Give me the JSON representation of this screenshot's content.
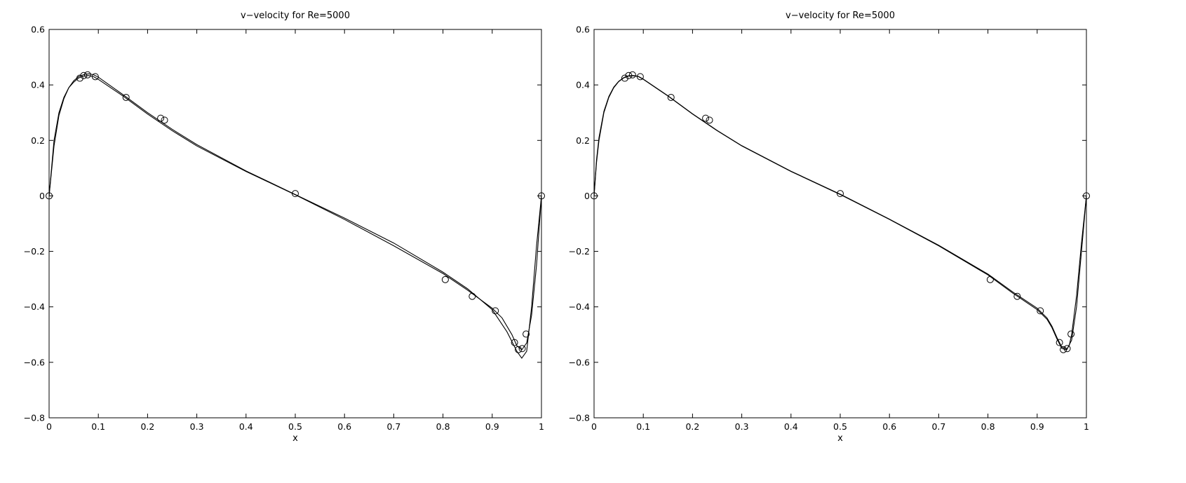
{
  "chart_data": [
    {
      "type": "line",
      "title": "v−velocity for Re=5000",
      "xlabel": "x",
      "ylabel": "",
      "xlim": [
        0,
        1
      ],
      "ylim": [
        -0.8,
        0.6
      ],
      "grid": false,
      "xticks": [
        0,
        0.1,
        0.2,
        0.3,
        0.4,
        0.5,
        0.6,
        0.7,
        0.8,
        0.9,
        1
      ],
      "xtick_labels": [
        "0",
        "0.1",
        "0.2",
        "0.3",
        "0.4",
        "0.5",
        "0.6",
        "0.7",
        "0.8",
        "0.9",
        "1"
      ],
      "yticks": [
        -0.8,
        -0.6,
        -0.4,
        -0.2,
        0,
        0.2,
        0.4,
        0.6
      ],
      "ytick_labels": [
        "−0.8",
        "−0.6",
        "−0.4",
        "−0.2",
        "0",
        "0.2",
        "0.4",
        "0.6"
      ],
      "series": [
        {
          "style": "line",
          "x": [
            0,
            0.01,
            0.02,
            0.03,
            0.04,
            0.05,
            0.06,
            0.07,
            0.08,
            0.09,
            0.1,
            0.15,
            0.2,
            0.25,
            0.3,
            0.4,
            0.5,
            0.6,
            0.7,
            0.8,
            0.85,
            0.9,
            0.93,
            0.95,
            0.96,
            0.97,
            0.98,
            0.99,
            1
          ],
          "y": [
            0,
            0.18,
            0.29,
            0.35,
            0.39,
            0.415,
            0.43,
            0.437,
            0.44,
            0.437,
            0.428,
            0.365,
            0.3,
            0.24,
            0.185,
            0.09,
            0.005,
            -0.08,
            -0.17,
            -0.275,
            -0.335,
            -0.41,
            -0.49,
            -0.56,
            -0.585,
            -0.56,
            -0.4,
            -0.18,
            0
          ]
        },
        {
          "style": "line",
          "x": [
            0,
            0.01,
            0.02,
            0.03,
            0.04,
            0.05,
            0.06,
            0.07,
            0.08,
            0.09,
            0.1,
            0.15,
            0.2,
            0.25,
            0.3,
            0.4,
            0.5,
            0.6,
            0.7,
            0.8,
            0.85,
            0.9,
            0.92,
            0.94,
            0.95,
            0.96,
            0.97,
            0.98,
            0.99,
            1
          ],
          "y": [
            0,
            0.2,
            0.3,
            0.355,
            0.39,
            0.41,
            0.425,
            0.432,
            0.434,
            0.43,
            0.42,
            0.36,
            0.295,
            0.235,
            0.18,
            0.088,
            0.004,
            -0.085,
            -0.18,
            -0.28,
            -0.34,
            -0.405,
            -0.44,
            -0.5,
            -0.54,
            -0.555,
            -0.53,
            -0.43,
            -0.25,
            0
          ]
        },
        {
          "style": "markers",
          "marker": "circle",
          "x": [
            0,
            0.0625,
            0.0703,
            0.0781,
            0.0938,
            0.1563,
            0.2266,
            0.2344,
            0.5,
            0.8047,
            0.8594,
            0.9063,
            0.9453,
            0.9531,
            0.9609,
            0.9688,
            1
          ],
          "y": [
            0,
            0.4243,
            0.4338,
            0.4363,
            0.4298,
            0.355,
            0.28,
            0.2731,
            0.0083,
            -0.3017,
            -0.3621,
            -0.4143,
            -0.5287,
            -0.5541,
            -0.5505,
            -0.4981,
            0
          ]
        }
      ]
    },
    {
      "type": "line",
      "title": "v−velocity for Re=5000",
      "xlabel": "x",
      "ylabel": "",
      "xlim": [
        0,
        1
      ],
      "ylim": [
        -0.8,
        0.6
      ],
      "grid": false,
      "xticks": [
        0,
        0.1,
        0.2,
        0.3,
        0.4,
        0.5,
        0.6,
        0.7,
        0.8,
        0.9,
        1
      ],
      "xtick_labels": [
        "0",
        "0.1",
        "0.2",
        "0.3",
        "0.4",
        "0.5",
        "0.6",
        "0.7",
        "0.8",
        "0.9",
        "1"
      ],
      "yticks": [
        -0.8,
        -0.6,
        -0.4,
        -0.2,
        0,
        0.2,
        0.4,
        0.6
      ],
      "ytick_labels": [
        "−0.8",
        "−0.6",
        "−0.4",
        "−0.2",
        "0",
        "0.2",
        "0.4",
        "0.6"
      ],
      "series": [
        {
          "style": "line",
          "x": [
            0,
            0.005,
            0.01,
            0.02,
            0.03,
            0.04,
            0.05,
            0.06,
            0.07,
            0.08,
            0.09,
            0.1,
            0.15,
            0.2,
            0.25,
            0.3,
            0.4,
            0.5,
            0.6,
            0.7,
            0.8,
            0.85,
            0.9,
            0.92,
            0.93,
            0.94,
            0.95,
            0.96,
            0.97,
            0.98,
            0.99,
            1
          ],
          "y": [
            0,
            0.12,
            0.2,
            0.3,
            0.355,
            0.39,
            0.412,
            0.425,
            0.432,
            0.433,
            0.43,
            0.42,
            0.36,
            0.295,
            0.235,
            0.18,
            0.088,
            0.005,
            -0.085,
            -0.18,
            -0.285,
            -0.35,
            -0.41,
            -0.445,
            -0.475,
            -0.515,
            -0.55,
            -0.555,
            -0.52,
            -0.4,
            -0.2,
            0
          ]
        },
        {
          "style": "line",
          "x": [
            0,
            0.005,
            0.01,
            0.02,
            0.03,
            0.04,
            0.05,
            0.06,
            0.07,
            0.08,
            0.09,
            0.1,
            0.15,
            0.2,
            0.25,
            0.3,
            0.4,
            0.5,
            0.6,
            0.7,
            0.8,
            0.85,
            0.9,
            0.92,
            0.93,
            0.94,
            0.95,
            0.96,
            0.965,
            0.97,
            0.98,
            0.99,
            1
          ],
          "y": [
            0,
            0.13,
            0.21,
            0.305,
            0.358,
            0.392,
            0.413,
            0.426,
            0.433,
            0.434,
            0.431,
            0.421,
            0.361,
            0.296,
            0.236,
            0.181,
            0.089,
            0.006,
            -0.084,
            -0.178,
            -0.282,
            -0.346,
            -0.405,
            -0.44,
            -0.47,
            -0.51,
            -0.545,
            -0.552,
            -0.54,
            -0.5,
            -0.36,
            -0.17,
            0
          ]
        },
        {
          "style": "markers",
          "marker": "circle",
          "x": [
            0,
            0.0625,
            0.0703,
            0.0781,
            0.0938,
            0.1563,
            0.2266,
            0.2344,
            0.5,
            0.8047,
            0.8594,
            0.9063,
            0.9453,
            0.9531,
            0.9609,
            0.9688,
            1
          ],
          "y": [
            0,
            0.4243,
            0.4338,
            0.4363,
            0.4298,
            0.355,
            0.28,
            0.2731,
            0.0083,
            -0.3017,
            -0.3621,
            -0.4143,
            -0.5287,
            -0.5541,
            -0.5505,
            -0.4981,
            0
          ]
        }
      ]
    }
  ]
}
